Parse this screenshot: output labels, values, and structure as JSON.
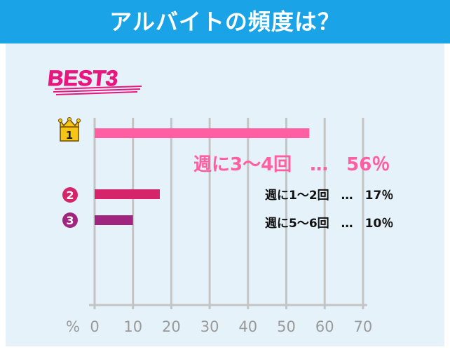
{
  "header": {
    "title": "アルバイトの頻度は？"
  },
  "badge": {
    "text": "BEST3"
  },
  "chart_data": {
    "type": "bar",
    "orientation": "horizontal",
    "categories": [
      "週に3〜4回",
      "週に1〜2回",
      "週に5〜6回"
    ],
    "values": [
      56,
      17,
      10
    ],
    "unit": "%",
    "xlim": [
      0,
      70
    ],
    "xticks": [
      "0",
      "10",
      "20",
      "30",
      "40",
      "50",
      "60",
      "70"
    ],
    "xlabel": "%",
    "ranks": [
      "1",
      "2",
      "3"
    ],
    "data_labels": [
      "週に3〜4回　…　56％",
      "週に1〜2回　…　17％",
      "週に5〜6回　…　10％"
    ],
    "colors": [
      "#ff5fa2",
      "#d6246a",
      "#a0257e"
    ],
    "grid": true
  }
}
